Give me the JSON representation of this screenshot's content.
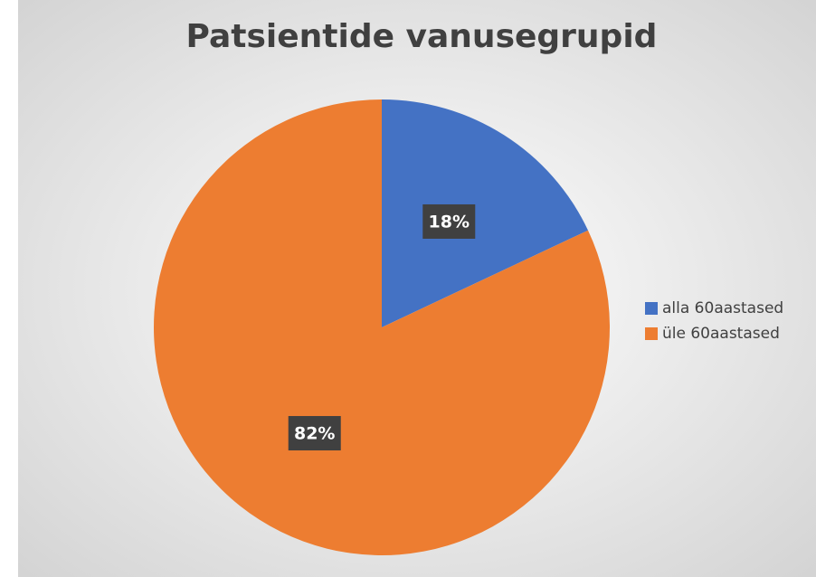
{
  "chart_data": {
    "type": "pie",
    "title": "Patsientide vanusegrupid",
    "categories": [
      "alla 60aastased",
      "üle 60aastased"
    ],
    "values": [
      18,
      82
    ],
    "value_labels": [
      "18%",
      "82%"
    ],
    "colors": [
      "#4472c4",
      "#ed7d31"
    ],
    "legend": "right"
  }
}
